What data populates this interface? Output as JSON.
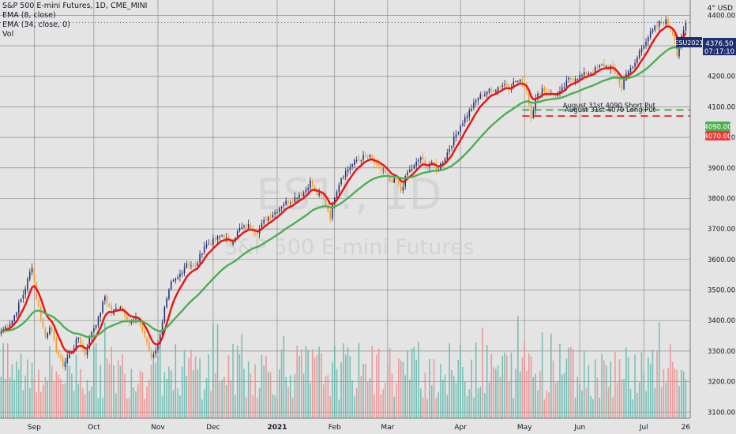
{
  "header": {
    "title": "S&P 500 E-mini Futures, 1D, CME_MINI",
    "indicators": [
      "EMA (8, close)",
      "EMA (34, close, 0)",
      "Vol"
    ]
  },
  "watermark": {
    "symbol": "ES1!, 1D",
    "name": "S&P 500 E-mini Futures"
  },
  "price_axis": {
    "corner_label": "4° USD"
  },
  "price_labels": {
    "symbol_tag": "ESU2021",
    "last_price": "4376.50",
    "countdown": "07:17:10",
    "short_put": "4090.00",
    "long_put": "4070.00"
  },
  "annotations": {
    "short_put": "August 31st 4090 Short Put",
    "long_put": "August 31st 4070 Long Put"
  },
  "colors": {
    "background": "#e4e4e4",
    "bull": "#1f2f6e",
    "bear": "#f29a24",
    "ema8": "#ee1111",
    "ema34": "#4caf50",
    "vol_up": "#5fb8ad",
    "vol_down": "#ec8b8b",
    "short_put": "#4caf50",
    "long_put": "#ef3535",
    "symbol_tag": "#1f2f6e"
  },
  "chart_data": {
    "type": "candlestick",
    "title": "S&P 500 E-mini Futures, 1D, CME_MINI",
    "ylim": [
      3080,
      4450
    ],
    "y_ticks": [
      3100,
      3200,
      3300,
      3400,
      3500,
      3600,
      3700,
      3800,
      3900,
      4000,
      4100,
      4200,
      4300,
      4400
    ],
    "x_ticks": [
      {
        "label": "Sep",
        "i": 15
      },
      {
        "label": "Oct",
        "i": 42
      },
      {
        "label": "Nov",
        "i": 71
      },
      {
        "label": "Dec",
        "i": 96
      },
      {
        "label": "2021",
        "i": 125
      },
      {
        "label": "Feb",
        "i": 151
      },
      {
        "label": "Mar",
        "i": 175
      },
      {
        "label": "Apr",
        "i": 208
      },
      {
        "label": "May",
        "i": 237
      },
      {
        "label": "Jun",
        "i": 262
      },
      {
        "label": "Jul",
        "i": 291
      },
      {
        "label": "26",
        "i": 310
      }
    ],
    "grid": true,
    "x_range": [
      -0.5,
      312
    ],
    "ohlc_anchors": [
      [
        0,
        3365
      ],
      [
        5,
        3400
      ],
      [
        10,
        3485
      ],
      [
        14,
        3580
      ],
      [
        16,
        3475
      ],
      [
        20,
        3345
      ],
      [
        22,
        3385
      ],
      [
        25,
        3305
      ],
      [
        28,
        3255
      ],
      [
        32,
        3300
      ],
      [
        35,
        3345
      ],
      [
        38,
        3290
      ],
      [
        41,
        3365
      ],
      [
        44,
        3405
      ],
      [
        47,
        3480
      ],
      [
        50,
        3425
      ],
      [
        54,
        3450
      ],
      [
        58,
        3395
      ],
      [
        62,
        3405
      ],
      [
        65,
        3345
      ],
      [
        68,
        3280
      ],
      [
        71,
        3320
      ],
      [
        74,
        3440
      ],
      [
        77,
        3520
      ],
      [
        80,
        3540
      ],
      [
        84,
        3590
      ],
      [
        88,
        3575
      ],
      [
        92,
        3645
      ],
      [
        96,
        3660
      ],
      [
        100,
        3680
      ],
      [
        104,
        3655
      ],
      [
        108,
        3700
      ],
      [
        112,
        3710
      ],
      [
        116,
        3690
      ],
      [
        120,
        3735
      ],
      [
        124,
        3755
      ],
      [
        128,
        3785
      ],
      [
        132,
        3795
      ],
      [
        134,
        3810
      ],
      [
        137,
        3820
      ],
      [
        140,
        3855
      ],
      [
        143,
        3815
      ],
      [
        146,
        3800
      ],
      [
        149,
        3740
      ],
      [
        151,
        3810
      ],
      [
        154,
        3870
      ],
      [
        158,
        3905
      ],
      [
        161,
        3925
      ],
      [
        164,
        3935
      ],
      [
        167,
        3935
      ],
      [
        170,
        3905
      ],
      [
        173,
        3895
      ],
      [
        176,
        3850
      ],
      [
        179,
        3860
      ],
      [
        181,
        3825
      ],
      [
        184,
        3885
      ],
      [
        187,
        3905
      ],
      [
        190,
        3935
      ],
      [
        192,
        3905
      ],
      [
        195,
        3920
      ],
      [
        197,
        3890
      ],
      [
        201,
        3935
      ],
      [
        204,
        3980
      ],
      [
        208,
        4040
      ],
      [
        212,
        4085
      ],
      [
        216,
        4130
      ],
      [
        220,
        4150
      ],
      [
        224,
        4160
      ],
      [
        228,
        4175
      ],
      [
        230,
        4165
      ],
      [
        233,
        4185
      ],
      [
        236,
        4180
      ],
      [
        238,
        4155
      ],
      [
        239,
        4110
      ],
      [
        240,
        4070
      ],
      [
        242,
        4125
      ],
      [
        245,
        4160
      ],
      [
        249,
        4140
      ],
      [
        253,
        4145
      ],
      [
        257,
        4190
      ],
      [
        262,
        4200
      ],
      [
        267,
        4215
      ],
      [
        272,
        4235
      ],
      [
        276,
        4230
      ],
      [
        279,
        4195
      ],
      [
        281,
        4160
      ],
      [
        283,
        4215
      ],
      [
        286,
        4225
      ],
      [
        289,
        4280
      ],
      [
        292,
        4320
      ],
      [
        295,
        4350
      ],
      [
        298,
        4375
      ],
      [
        301,
        4380
      ],
      [
        303,
        4360
      ],
      [
        305,
        4325
      ],
      [
        306,
        4270
      ],
      [
        307,
        4300
      ],
      [
        309,
        4345
      ],
      [
        310,
        4376.5
      ]
    ],
    "volume_top": 3420,
    "volume_max": 3420,
    "volume_base": 3080,
    "ema_periods": [
      8,
      34
    ],
    "reference_lines": [
      {
        "label": "August 31st 4090 Short Put",
        "value": 4090,
        "style": "dashed"
      },
      {
        "label": "August 31st 4070 Long Put",
        "value": 4070,
        "style": "dashed"
      }
    ],
    "last_price": 4376.5
  }
}
